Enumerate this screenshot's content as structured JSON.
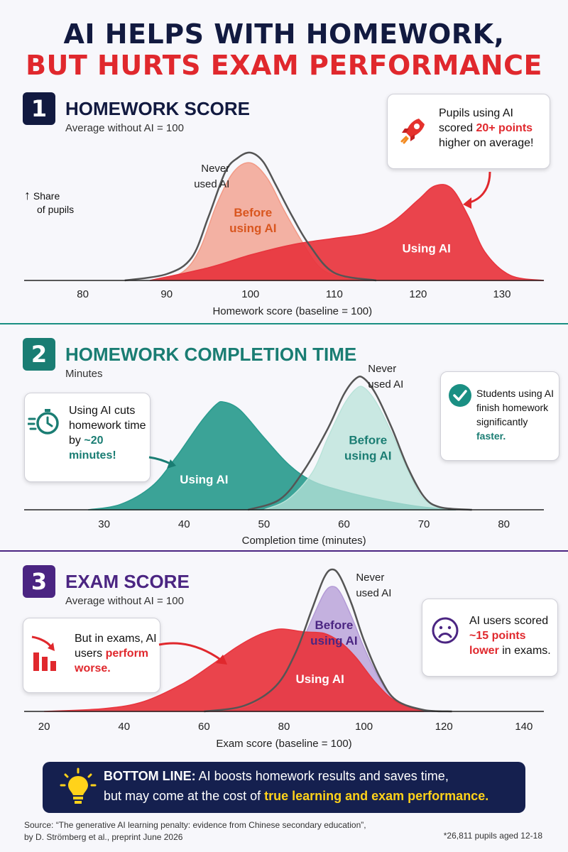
{
  "title": {
    "line1": "AI HELPS WITH HOMEWORK,",
    "line2": "BUT HURTS EXAM PERFORMANCE"
  },
  "colors": {
    "navy": "#121a40",
    "red": "#e0282d",
    "teal": "#1a7d73",
    "purple": "#4b2582",
    "yellow": "#ffd21a"
  },
  "sections": [
    {
      "number": "1",
      "title": "HOMEWORK SCORE",
      "subtitle": "Average without AI = 100",
      "y_axis_label": [
        "Share",
        "of pupils"
      ],
      "callout": {
        "pre": "Pupils using AI scored ",
        "highlight": "20+ points",
        "post": " higher on average!",
        "icon": "rocket-icon"
      }
    },
    {
      "number": "2",
      "title": "HOMEWORK COMPLETION TIME",
      "subtitle": "Minutes",
      "callout_left": {
        "pre": "Using AI cuts homework time by ",
        "highlight": "~20 minutes!",
        "icon": "stopwatch-icon"
      },
      "callout_right": {
        "pre": "Students using AI finish homework significantly ",
        "highlight": "faster.",
        "icon": "checkmark-icon"
      }
    },
    {
      "number": "3",
      "title": "EXAM SCORE",
      "subtitle": "Average without AI = 100",
      "callout_left": {
        "pre": "But in exams, AI users ",
        "highlight": "perform worse.",
        "icon": "declining-chart-icon"
      },
      "callout_right": {
        "pre": "AI users scored ",
        "highlight": "~15 points lower",
        "post": " in exams.",
        "icon": "sad-face-icon"
      }
    }
  ],
  "chart_data": [
    {
      "type": "area",
      "xlabel": "Homework score (baseline = 100)",
      "ylabel": "Share of pupils",
      "xlim": [
        73,
        135
      ],
      "xticks": [
        80,
        90,
        100,
        110,
        120,
        130
      ],
      "series": [
        {
          "name": "Never used AI",
          "label_lines": [
            "Never",
            "used AI"
          ],
          "color": "#555555",
          "style": "outline",
          "x": [
            85,
            90,
            93,
            95,
            97,
            98.5,
            100,
            101.5,
            103,
            105,
            107,
            110,
            115
          ],
          "y": [
            0,
            0.05,
            0.18,
            0.5,
            0.85,
            0.96,
            1.0,
            0.93,
            0.75,
            0.5,
            0.28,
            0.06,
            0
          ]
        },
        {
          "name": "Before using AI",
          "label_lines": [
            "Before",
            "using AI"
          ],
          "color": "#f29a86",
          "style": "fill",
          "x": [
            89,
            92,
            94,
            96,
            98,
            100,
            102,
            104,
            106,
            108,
            110,
            113
          ],
          "y": [
            0,
            0.07,
            0.25,
            0.6,
            0.85,
            0.92,
            0.8,
            0.55,
            0.32,
            0.12,
            0.04,
            0
          ]
        },
        {
          "name": "Using AI",
          "label_lines": [
            "Using AI"
          ],
          "color": "#e8343d",
          "style": "fill",
          "x": [
            88,
            95,
            100,
            105,
            110,
            114,
            117,
            120,
            122,
            124,
            126,
            128,
            131,
            135
          ],
          "y": [
            0,
            0.1,
            0.2,
            0.28,
            0.33,
            0.37,
            0.46,
            0.63,
            0.74,
            0.72,
            0.5,
            0.22,
            0.04,
            0
          ]
        }
      ]
    },
    {
      "type": "area",
      "xlabel": "Completion time (minutes)",
      "xlim": [
        20,
        85
      ],
      "xticks": [
        30,
        40,
        50,
        60,
        70,
        80
      ],
      "series": [
        {
          "name": "Using AI",
          "label_lines": [
            "Using AI"
          ],
          "color": "#2a9b8e",
          "style": "fill",
          "x": [
            28,
            32,
            36,
            39,
            42,
            44,
            45,
            47,
            50,
            53,
            56,
            60,
            65,
            70,
            74
          ],
          "y": [
            0,
            0.04,
            0.18,
            0.4,
            0.66,
            0.8,
            0.82,
            0.76,
            0.55,
            0.35,
            0.22,
            0.14,
            0.07,
            0.02,
            0
          ]
        },
        {
          "name": "Before using AI",
          "label_lines": [
            "Before",
            "using AI"
          ],
          "color": "#b9e3d9",
          "style": "fill",
          "x": [
            50,
            53,
            56,
            58,
            60,
            61.5,
            62.5,
            64,
            66,
            68,
            70,
            73
          ],
          "y": [
            0,
            0.08,
            0.28,
            0.55,
            0.8,
            0.92,
            0.93,
            0.82,
            0.58,
            0.3,
            0.08,
            0
          ]
        },
        {
          "name": "Never used AI",
          "label_lines": [
            "Never",
            "used AI"
          ],
          "color": "#555555",
          "style": "outline",
          "x": [
            48,
            52,
            55,
            58,
            60,
            61.5,
            62.5,
            64,
            66,
            68,
            70,
            72,
            76
          ],
          "y": [
            0,
            0.08,
            0.3,
            0.62,
            0.88,
            1.0,
            1.0,
            0.88,
            0.62,
            0.32,
            0.1,
            0.02,
            0
          ]
        }
      ]
    },
    {
      "type": "area",
      "xlabel": "Exam score (baseline = 100)",
      "xlim": [
        15,
        145
      ],
      "xticks": [
        20,
        40,
        60,
        80,
        100,
        120,
        140
      ],
      "series": [
        {
          "name": "Never used AI",
          "label_lines": [
            "Never",
            "used AI"
          ],
          "color": "#555555",
          "style": "outline",
          "x": [
            60,
            70,
            78,
            83,
            87,
            90,
            92,
            94,
            97,
            100,
            104,
            108,
            115,
            122
          ],
          "y": [
            0,
            0.04,
            0.18,
            0.42,
            0.72,
            0.94,
            1.0,
            0.95,
            0.75,
            0.5,
            0.24,
            0.08,
            0.01,
            0
          ]
        },
        {
          "name": "Before using AI",
          "label_lines": [
            "Before",
            "using AI"
          ],
          "color": "#b39ad6",
          "style": "fill",
          "x": [
            65,
            72,
            78,
            83,
            87,
            90,
            92,
            94,
            97,
            100,
            104,
            108,
            112,
            118
          ],
          "y": [
            0,
            0.04,
            0.18,
            0.4,
            0.65,
            0.83,
            0.88,
            0.84,
            0.66,
            0.45,
            0.22,
            0.07,
            0.02,
            0
          ]
        },
        {
          "name": "Using AI",
          "label_lines": [
            "Using AI"
          ],
          "color": "#e8343d",
          "style": "fill",
          "x": [
            20,
            35,
            45,
            55,
            62,
            68,
            73,
            77,
            80,
            85,
            90,
            94,
            98,
            103,
            108,
            115
          ],
          "y": [
            0,
            0.02,
            0.07,
            0.2,
            0.33,
            0.45,
            0.53,
            0.57,
            0.58,
            0.56,
            0.55,
            0.49,
            0.38,
            0.2,
            0.07,
            0
          ]
        }
      ]
    }
  ],
  "bottom_line": {
    "label": "BOTTOM LINE:",
    "text1": " AI boosts homework results and saves time,",
    "text2_pre": "but may come at the cost of ",
    "text2_highlight": "true learning and exam performance.",
    "icon": "lightbulb-icon"
  },
  "source": {
    "line1": "Source: “The generative AI learning penalty: evidence from Chinese secondary education”,",
    "line2": "by D. Strömberg et al., preprint June 2026"
  },
  "note": "*26,811 pupils aged 12-18"
}
